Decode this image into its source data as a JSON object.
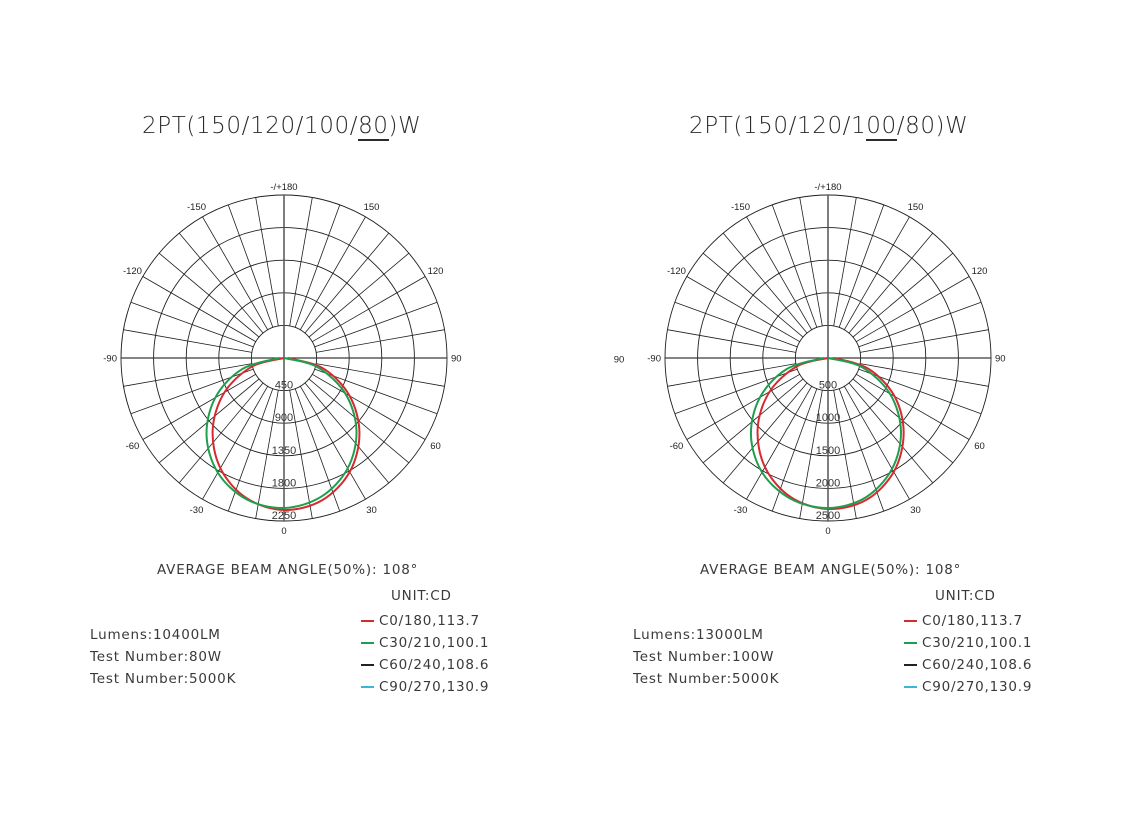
{
  "colors": {
    "text": "#333333",
    "grid": "#1e1e1e",
    "c0": "#d62a2e",
    "c30": "#1f9e4f",
    "c60": "#222222",
    "c90": "#3bb6d9"
  },
  "charts": [
    {
      "title_pre": "2PT(150/120/100/",
      "title_underlined": "80",
      "title_post": ")W",
      "beam_angle": "AVERAGE BEAM ANGLE(50%): 108°",
      "unit": "UNIT:CD",
      "legend": [
        {
          "label": "C0/180,113.7",
          "color": "#d62a2e"
        },
        {
          "label": "C30/210,100.1",
          "color": "#1f9e4f"
        },
        {
          "label": "C60/240,108.6",
          "color": "#222222"
        },
        {
          "label": "C90/270,130.9",
          "color": "#3bb6d9"
        }
      ],
      "info": [
        "Lumens:10400LM",
        "Test Number:80W",
        "Test Number:5000K"
      ]
    },
    {
      "title_pre": "2PT(150/120/1",
      "title_underlined": "00",
      "title_post": "/80)W",
      "beam_angle": "AVERAGE BEAM ANGLE(50%): 108°",
      "unit": "UNIT:CD",
      "legend": [
        {
          "label": "C0/180,113.7",
          "color": "#d62a2e"
        },
        {
          "label": "C30/210,100.1",
          "color": "#1f9e4f"
        },
        {
          "label": "C60/240,108.6",
          "color": "#222222"
        },
        {
          "label": "C90/270,130.9",
          "color": "#3bb6d9"
        }
      ],
      "info": [
        "Lumens:13000LM",
        "Test Number:100W",
        "Test Number:5000K"
      ]
    }
  ],
  "chart_data": [
    {
      "type": "polar",
      "title": "2PT(150/120/100/80)W",
      "subtitle": "AVERAGE BEAM ANGLE(50%): 108°",
      "unit": "cd",
      "angle_labels": [
        "-/+180",
        "150",
        "120",
        "90",
        "60",
        "30",
        "0",
        "-30",
        "-60",
        "-90",
        "-120",
        "-150"
      ],
      "extra_angle_labels": [],
      "radial_ticks": [
        450,
        900,
        1350,
        1800,
        2250
      ],
      "rmax": 2250,
      "spoke_step_deg": 10,
      "grid": true,
      "angles": [
        -90,
        -75,
        -60,
        -45,
        -30,
        -15,
        0,
        15,
        30,
        45,
        60,
        75,
        90
      ],
      "series": [
        {
          "name": "C0/180",
          "color": "#d62a2e",
          "values": [
            0,
            457,
            949,
            1392,
            1757,
            2002,
            2098,
            2033,
            1815,
            1473,
            1046,
            563,
            55
          ]
        },
        {
          "name": "C30/210",
          "color": "#1f9e4f",
          "values": [
            69,
            603,
            1095,
            1512,
            1827,
            2017,
            2070,
            1982,
            1758,
            1415,
            975,
            469,
            0
          ]
        }
      ],
      "legend": [
        "C0/180,113.7",
        "C30/210,100.1",
        "C60/240,108.6",
        "C90/270,130.9"
      ],
      "info": {
        "lumens": "10400LM",
        "power": "80W",
        "cct": "5000K"
      }
    },
    {
      "type": "polar",
      "title": "2PT(150/120/100/80)W",
      "subtitle": "AVERAGE BEAM ANGLE(50%): 108°",
      "unit": "cd",
      "angle_labels": [
        "-/+180",
        "150",
        "120",
        "90",
        "60",
        "30",
        "0",
        "-30",
        "-60",
        "-90",
        "-120",
        "-150"
      ],
      "extra_angle_labels": [
        "90"
      ],
      "radial_ticks": [
        500,
        1000,
        1500,
        2000,
        2500
      ],
      "rmax": 2500,
      "spoke_step_deg": 10,
      "grid": true,
      "angles": [
        -90,
        -75,
        -60,
        -45,
        -30,
        -15,
        0,
        15,
        30,
        45,
        60,
        75,
        90
      ],
      "series": [
        {
          "name": "C0/180",
          "color": "#d62a2e",
          "values": [
            0,
            491,
            1035,
            1526,
            1933,
            2209,
            2316,
            2255,
            2017,
            1641,
            1181,
            644,
            92
          ]
        },
        {
          "name": "C30/210",
          "color": "#1f9e4f",
          "values": [
            61,
            657,
            1204,
            1671,
            2023,
            2232,
            2301,
            2217,
            1964,
            1583,
            1097,
            535,
            0
          ]
        }
      ],
      "legend": [
        "C0/180,113.7",
        "C30/210,100.1",
        "C60/240,108.6",
        "C90/270,130.9"
      ],
      "info": {
        "lumens": "13000LM",
        "power": "100W",
        "cct": "5000K"
      }
    }
  ]
}
